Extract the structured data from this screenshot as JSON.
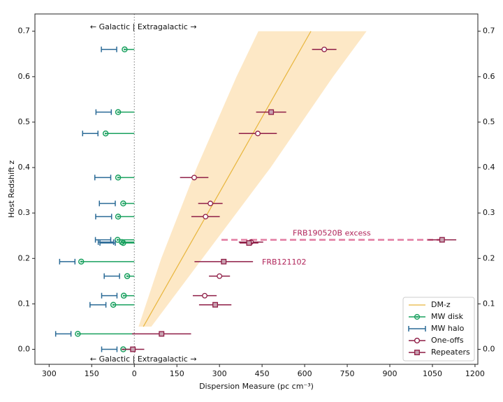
{
  "chart_data": {
    "type": "errorbar",
    "xlabel": "Dispersion Measure (pc cm⁻³)",
    "ylabel": "Host Redshift z",
    "xlim": [
      -350,
      1210
    ],
    "ylim": [
      -0.033,
      0.738
    ],
    "y2lim": [
      -0.033,
      0.738
    ],
    "xticks": [
      {
        "value": -300,
        "label": "300"
      },
      {
        "value": -150,
        "label": "150"
      },
      0,
      150,
      300,
      450,
      600,
      750,
      900,
      1050,
      1200
    ],
    "yticks": [
      {
        "value": 0,
        "label": "0.0"
      },
      0.1,
      0.2,
      0.3,
      0.4,
      0.5,
      0.6,
      0.7
    ],
    "y2ticks": [
      {
        "value": 0,
        "label": "0.0"
      },
      0.1,
      0.2,
      0.3,
      0.4,
      0.5,
      0.6,
      0.7
    ],
    "annotations": [
      "← Galactic | Extragalactic →",
      "← Galactic | Extragalactic →",
      "FRB121102"
    ],
    "excess": {
      "label": "FRB190520B excess",
      "color": "#e27aa0",
      "z": 0.241,
      "values": [
        307,
        1084
      ]
    },
    "legend": "lower right",
    "series": [
      {
        "name": "DM-z",
        "kind": "band-line",
        "color": "#e8b53c",
        "band_color": "#fde8c6",
        "z": [
          0.05,
          0.2,
          0.4,
          0.6,
          0.7
        ],
        "values": [
          32,
          168,
          350,
          531,
          622
        ],
        "lower": [
          15,
          95,
          220,
          360,
          437
        ],
        "upper": [
          60,
          240,
          480,
          700,
          818
        ]
      },
      {
        "name": "MW disk",
        "kind": "disk",
        "color": "#18a05e",
        "z": [
          0.66,
          0.522,
          0.475,
          0.378,
          0.321,
          0.292,
          0.241,
          0.236,
          0.234,
          0.193,
          0.161,
          0.118,
          0.098,
          0.034,
          0.0
        ],
        "values": [
          -34,
          -57,
          -101,
          -57,
          -39,
          -57,
          -59,
          -44,
          -39,
          -187,
          -25,
          -37,
          -74,
          -199,
          -39
        ]
      },
      {
        "name": "MW halo",
        "kind": "halo",
        "color": "#2a6a96",
        "z": [
          0.66,
          0.522,
          0.475,
          0.378,
          0.321,
          0.292,
          0.241,
          0.236,
          0.234,
          0.193,
          0.161,
          0.118,
          0.098,
          0.034,
          0.0
        ],
        "values": [
          -89,
          -108,
          -155,
          -111,
          -95,
          -108,
          -110,
          -100,
          -94,
          -236,
          -79,
          -88,
          -128,
          -250,
          -88
        ],
        "errors": [
          27,
          27,
          27,
          28,
          28,
          28,
          27,
          27,
          27,
          27,
          27,
          27,
          28,
          27,
          27
        ]
      },
      {
        "name": "One-offs",
        "kind": "open-circle",
        "color": "#8e1c45",
        "z": [
          0.66,
          0.475,
          0.378,
          0.321,
          0.292,
          0.236,
          0.161,
          0.118
        ],
        "values": [
          669,
          435,
          211,
          268,
          251,
          411,
          300,
          248
        ],
        "errors": [
          43,
          67,
          50,
          43,
          50,
          43,
          37,
          42
        ]
      },
      {
        "name": "Repeaters",
        "kind": "square",
        "color": "#8e1c45",
        "z": [
          0.522,
          0.241,
          0.234,
          0.193,
          0.098,
          0.034,
          0.0
        ],
        "values": [
          482,
          1084,
          404,
          315,
          285,
          96,
          -5
        ],
        "errors": [
          53,
          50,
          33,
          103,
          57,
          104,
          40
        ]
      }
    ]
  }
}
